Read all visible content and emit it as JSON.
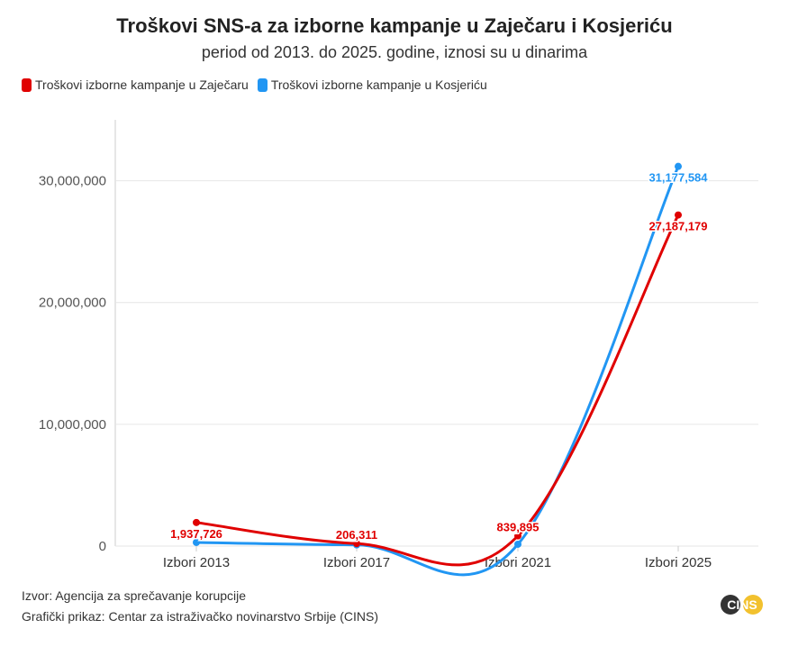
{
  "title": "Troškovi SNS-a za izborne kampanje u Zaječaru i Kosjeriću",
  "subtitle": "period od 2013. do 2025. godine, iznosi su u dinarima",
  "footer": {
    "source": "Izvor: Agencija za sprečavanje korupcije",
    "credit": "Grafički prikaz: Centar za istraživačko novinarstvo Srbije (CINS)"
  },
  "logo": {
    "text": "CINS"
  },
  "colors": {
    "zajecar": "#e00000",
    "kosjeric": "#2196f3",
    "logo_dark": "#333333",
    "logo_yellow": "#f2c12e"
  },
  "chart_data": {
    "type": "line",
    "categories": [
      "Izbori 2013",
      "Izbori 2017",
      "Izbori 2021",
      "Izbori 2025"
    ],
    "ylim": [
      0,
      35000000
    ],
    "yticks": [
      0,
      10000000,
      20000000,
      30000000
    ],
    "ytick_labels": [
      "0",
      "10,000,000",
      "20,000,000",
      "30,000,000"
    ],
    "grid": true,
    "legend_position": "top-left",
    "series": [
      {
        "name": "Troškovi izborne kampanje u Zaječaru",
        "color": "#e00000",
        "values": [
          1937726,
          206311,
          839895,
          27187179
        ],
        "labels": [
          "1,937,726",
          "206,311",
          "839,895",
          "27,187,179"
        ]
      },
      {
        "name": "Troškovi izborne kampanje u Kosjeriću",
        "color": "#2196f3",
        "values": [
          300000,
          100000,
          150000,
          31177584
        ],
        "labels": [
          "",
          "",
          "",
          "31,177,584"
        ]
      }
    ]
  }
}
